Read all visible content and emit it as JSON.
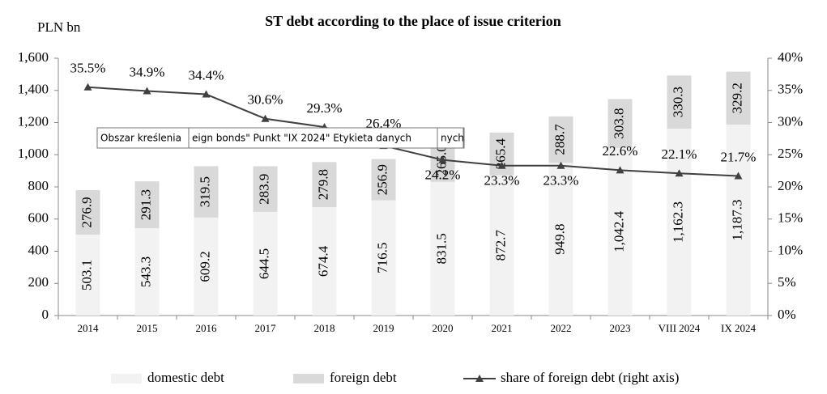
{
  "chart_data": {
    "type": "stacked-bar-line",
    "title": "ST debt according to the place of issue criterion",
    "y_label": "PLN bn",
    "categories": [
      "2014",
      "2015",
      "2016",
      "2017",
      "2018",
      "2019",
      "2020",
      "2021",
      "2022",
      "2023",
      "VIII 2024",
      "IX 2024"
    ],
    "series": [
      {
        "name": "domestic debt",
        "color": "#f2f2f2",
        "kind": "bar",
        "values": [
          503.1,
          543.3,
          609.2,
          644.5,
          674.4,
          716.5,
          831.5,
          872.7,
          949.8,
          1042.4,
          1162.3,
          1187.3
        ],
        "value_labels": [
          "503.1",
          "543.3",
          "609.2",
          "644.5",
          "674.4",
          "716.5",
          "831.5",
          "872.7",
          "949.8",
          "1,042.4",
          "1,162.3",
          "1,187.3"
        ]
      },
      {
        "name": "foreign debt",
        "color": "#d9d9d9",
        "kind": "bar",
        "values": [
          276.9,
          291.3,
          319.5,
          283.9,
          279.8,
          256.9,
          265.0,
          265.4,
          288.7,
          303.8,
          330.3,
          329.2
        ],
        "value_labels": [
          "276.9",
          "291.3",
          "319.5",
          "283.9",
          "279.8",
          "256.9",
          "265.0",
          "265.4",
          "288.7",
          "303.8",
          "330.3",
          "329.2"
        ]
      },
      {
        "name": "share of foreign debt (right axis)",
        "color": "#404040",
        "kind": "line",
        "axis": "y2",
        "values": [
          35.5,
          34.9,
          34.4,
          30.6,
          29.3,
          26.4,
          24.2,
          23.3,
          23.3,
          22.6,
          22.1,
          21.7
        ],
        "value_labels": [
          "35.5%",
          "34.9%",
          "34.4%",
          "30.6%",
          "29.3%",
          "26.4%",
          "24.2%",
          "23.3%",
          "23.3%",
          "22.6%",
          "22.1%",
          "21.7%"
        ]
      }
    ],
    "ylim": [
      0,
      1600
    ],
    "yticks": [
      0,
      200,
      400,
      600,
      800,
      {
        "value": 1000,
        "label": "1,000"
      },
      {
        "value": 1200,
        "label": "1,200"
      },
      {
        "value": 1400,
        "label": "1,400"
      },
      {
        "value": 1600,
        "label": "1,600"
      }
    ],
    "y2lim": [
      0,
      40
    ],
    "y2ticks": [
      {
        "value": 0,
        "label": "0%"
      },
      {
        "value": 5,
        "label": "5%"
      },
      {
        "value": 10,
        "label": "10%"
      },
      {
        "value": 15,
        "label": "15%"
      },
      {
        "value": 20,
        "label": "20%"
      },
      {
        "value": 25,
        "label": "25%"
      },
      {
        "value": 30,
        "label": "30%"
      },
      {
        "value": 35,
        "label": "35%"
      },
      {
        "value": 40,
        "label": "40%"
      }
    ],
    "grid": false,
    "legend": "bottom",
    "tooltips": [
      "Obszar kreślenia",
      "eign bonds\" Punkt \"IX 2024\" Etykieta danych",
      "nych"
    ]
  }
}
